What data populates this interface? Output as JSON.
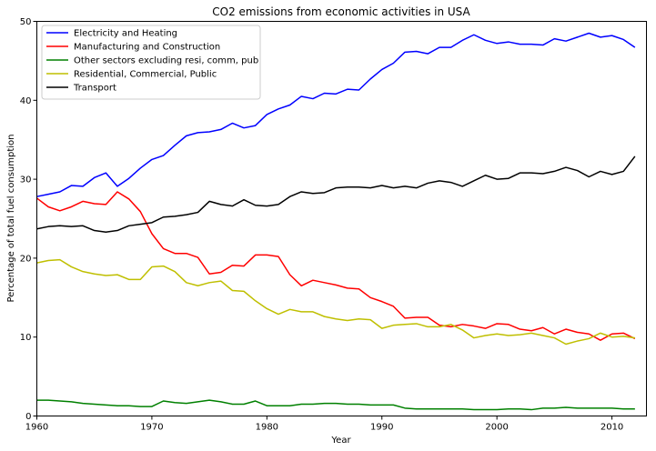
{
  "chart_data": {
    "type": "line",
    "title": "CO2 emissions from economic activities in USA",
    "xlabel": "Year",
    "ylabel": "Percentage of total fuel consumption",
    "xlim": [
      1960,
      2013
    ],
    "ylim": [
      0,
      50
    ],
    "xticks": [
      1960,
      1970,
      1980,
      1990,
      2000,
      2010
    ],
    "yticks": [
      0,
      10,
      20,
      30,
      40,
      50
    ],
    "grid": false,
    "legend_position": "top-left",
    "x": [
      1960,
      1961,
      1962,
      1963,
      1964,
      1965,
      1966,
      1967,
      1968,
      1969,
      1970,
      1971,
      1972,
      1973,
      1974,
      1975,
      1976,
      1977,
      1978,
      1979,
      1980,
      1981,
      1982,
      1983,
      1984,
      1985,
      1986,
      1987,
      1988,
      1989,
      1990,
      1991,
      1992,
      1993,
      1994,
      1995,
      1996,
      1997,
      1998,
      1999,
      2000,
      2001,
      2002,
      2003,
      2004,
      2005,
      2006,
      2007,
      2008,
      2009,
      2010,
      2011,
      2012
    ],
    "series": [
      {
        "name": "Electricity and Heating",
        "color": "#0000ff",
        "values": [
          27.8,
          28.1,
          28.4,
          29.2,
          29.1,
          30.2,
          30.8,
          29.1,
          30.1,
          31.4,
          32.5,
          33.0,
          34.3,
          35.5,
          35.9,
          36.0,
          36.3,
          37.1,
          36.5,
          36.8,
          38.2,
          38.9,
          39.4,
          40.5,
          40.2,
          40.9,
          40.8,
          41.4,
          41.3,
          42.7,
          43.9,
          44.7,
          46.1,
          46.2,
          45.9,
          46.7,
          46.7,
          47.6,
          48.3,
          47.6,
          47.2,
          47.4,
          47.1,
          47.1,
          47.0,
          47.8,
          47.5,
          48.0,
          48.5,
          48.0,
          48.2,
          47.7,
          46.7
        ]
      },
      {
        "name": "Manufacturing and Construction",
        "color": "#ff0000",
        "values": [
          27.6,
          26.5,
          26.0,
          26.5,
          27.2,
          26.9,
          26.8,
          28.4,
          27.5,
          25.9,
          23.1,
          21.2,
          20.6,
          20.6,
          20.1,
          18.0,
          18.2,
          19.1,
          19.0,
          20.4,
          20.4,
          20.2,
          17.9,
          16.5,
          17.2,
          16.9,
          16.6,
          16.2,
          16.1,
          15.0,
          14.5,
          13.9,
          12.4,
          12.5,
          12.5,
          11.5,
          11.3,
          11.6,
          11.4,
          11.1,
          11.7,
          11.6,
          11.0,
          10.8,
          11.2,
          10.4,
          11.0,
          10.6,
          10.4,
          9.6,
          10.4,
          10.5,
          9.8
        ]
      },
      {
        "name": "Other sectors excluding resi, comm, pub",
        "color": "#008000",
        "values": [
          2.0,
          2.0,
          1.9,
          1.8,
          1.6,
          1.5,
          1.4,
          1.3,
          1.3,
          1.2,
          1.2,
          1.9,
          1.7,
          1.6,
          1.8,
          2.0,
          1.8,
          1.5,
          1.5,
          1.9,
          1.3,
          1.3,
          1.3,
          1.5,
          1.5,
          1.6,
          1.6,
          1.5,
          1.5,
          1.4,
          1.4,
          1.4,
          1.0,
          0.9,
          0.9,
          0.9,
          0.9,
          0.9,
          0.8,
          0.8,
          0.8,
          0.9,
          0.9,
          0.8,
          1.0,
          1.0,
          1.1,
          1.0,
          1.0,
          1.0,
          1.0,
          0.9,
          0.9
        ]
      },
      {
        "name": "Residential, Commercial, Public",
        "color": "#bfbf00",
        "values": [
          19.4,
          19.7,
          19.8,
          18.9,
          18.3,
          18.0,
          17.8,
          17.9,
          17.3,
          17.3,
          18.9,
          19.0,
          18.3,
          16.9,
          16.5,
          16.9,
          17.1,
          15.9,
          15.8,
          14.6,
          13.6,
          12.9,
          13.5,
          13.2,
          13.2,
          12.6,
          12.3,
          12.1,
          12.3,
          12.2,
          11.1,
          11.5,
          11.6,
          11.7,
          11.3,
          11.3,
          11.6,
          10.9,
          9.9,
          10.2,
          10.4,
          10.2,
          10.3,
          10.5,
          10.2,
          9.9,
          9.1,
          9.5,
          9.8,
          10.5,
          10.0,
          10.1,
          9.9
        ]
      },
      {
        "name": "Transport",
        "color": "#000000",
        "values": [
          23.7,
          24.0,
          24.1,
          24.0,
          24.1,
          23.5,
          23.3,
          23.5,
          24.1,
          24.3,
          24.5,
          25.2,
          25.3,
          25.5,
          25.8,
          27.2,
          26.8,
          26.6,
          27.4,
          26.7,
          26.6,
          26.8,
          27.8,
          28.4,
          28.2,
          28.3,
          28.9,
          29.0,
          29.0,
          28.9,
          29.2,
          28.9,
          29.1,
          28.9,
          29.5,
          29.8,
          29.6,
          29.1,
          29.8,
          30.5,
          30.0,
          30.1,
          30.8,
          30.8,
          30.7,
          31.0,
          31.5,
          31.1,
          30.3,
          31.0,
          30.6,
          31.0,
          32.9
        ]
      }
    ]
  }
}
